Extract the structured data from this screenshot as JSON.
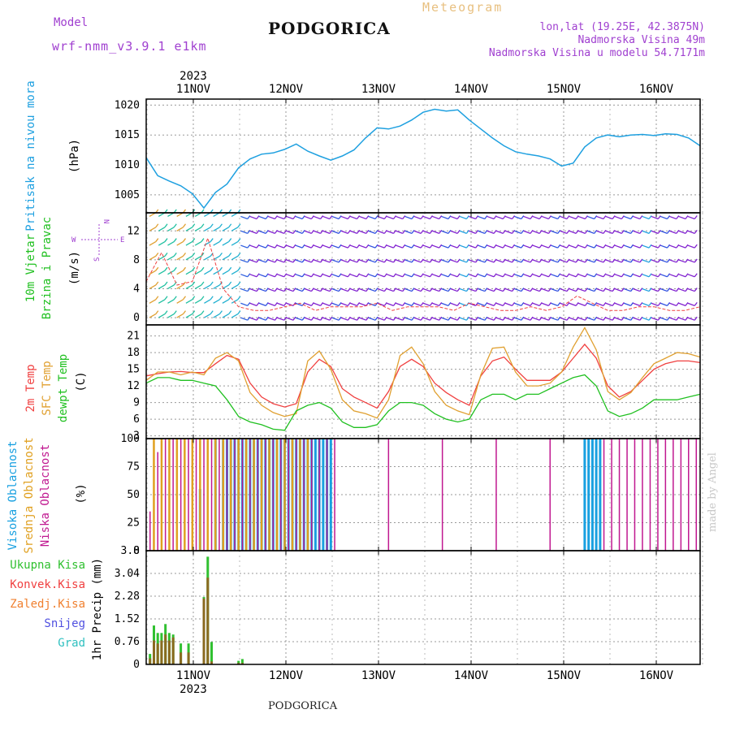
{
  "header": {
    "model_label": "Model",
    "model_name": "wrf-nmm_v3.9.1 e1km",
    "title": "PODGORICA",
    "meteogram_label": "Meteogram",
    "lonlat": "lon,lat (19.25E, 42.3875N)",
    "elevation": "Nadmorska Visina 49m",
    "model_elevation": "Nadmorska Visina u modelu 54.7171m",
    "footer_title": "PODGORICA",
    "watermark": "made by Angel"
  },
  "colors": {
    "pressure": "#1ea0e0",
    "temp2m": "#f04040",
    "sfc_temp": "#e0a030",
    "dewpoint": "#20c020",
    "high_cloud": "#18a0e0",
    "mid_cloud": "#e0a020",
    "low_cloud": "#c01890",
    "total_precip": "#30c030",
    "conv_precip": "#f04040",
    "frozen": "#f08030",
    "snow": "#5050e0",
    "hail": "#30c0c0",
    "header_purple": "#a040d0"
  },
  "chart_data": [
    {
      "type": "line",
      "id": "pressure",
      "ylabel": "Pritisak na nivou mora",
      "unit": "(hPa)",
      "top_year": "2023",
      "day_labels": [
        "11NOV",
        "12NOV",
        "13NOV",
        "14NOV",
        "15NOV",
        "16NOV"
      ],
      "ylim": [
        1002,
        1021
      ],
      "yticks": [
        1005,
        1010,
        1015,
        1020
      ],
      "grid": true,
      "x_hours": [
        0,
        3,
        6,
        9,
        12,
        15,
        18,
        21,
        24,
        27,
        30,
        33,
        36,
        39,
        42,
        45,
        48,
        51,
        54,
        57,
        60,
        63,
        66,
        69,
        72,
        75,
        78,
        81,
        84,
        87,
        90,
        93,
        96,
        99,
        102,
        105,
        108,
        111,
        114,
        117,
        120,
        123,
        126,
        129,
        132,
        135,
        138,
        141,
        144
      ],
      "values": [
        1011.2,
        1008.2,
        1007.3,
        1006.5,
        1005.2,
        1002.8,
        1005.4,
        1006.8,
        1009.5,
        1011,
        1011.8,
        1012,
        1012.6,
        1013.5,
        1012.3,
        1011.5,
        1010.8,
        1011.5,
        1012.5,
        1014.5,
        1016.2,
        1016,
        1016.5,
        1017.5,
        1018.8,
        1019.3,
        1019,
        1019.2,
        1017.5,
        1016,
        1014.5,
        1013.2,
        1012.2,
        1011.8,
        1011.5,
        1011,
        1009.8,
        1010.3,
        1013,
        1014.5,
        1015,
        1014.7,
        1015,
        1015.1,
        1014.9,
        1015.2,
        1015.1,
        1014.5,
        1013.2
      ]
    },
    {
      "type": "scatter",
      "id": "wind",
      "ylabel": "10m Vjetar",
      "ylabel2": "Brzina i Pravac",
      "unit": "(m/s)",
      "compass": {
        "north": "N",
        "west": "W",
        "east": "E",
        "south": "S"
      },
      "ylim": [
        -1,
        14.5
      ],
      "yticks": [
        0,
        4,
        8,
        12
      ],
      "grid": true,
      "x_hours": [
        0,
        4,
        8,
        12,
        16,
        20,
        24,
        28,
        32,
        36,
        40,
        44,
        48,
        52,
        56,
        60,
        64,
        68,
        72,
        76,
        80,
        84,
        88,
        92,
        96,
        100,
        104,
        108,
        112,
        116,
        120,
        124,
        128,
        132,
        136,
        140,
        144
      ],
      "speed_values": [
        5,
        9,
        4.5,
        5,
        11,
        4,
        1.5,
        1,
        1,
        1.5,
        2,
        1,
        1.5,
        1.5,
        1.5,
        2,
        1,
        1.5,
        1.5,
        1.5,
        1,
        2,
        1.5,
        1,
        1,
        1.5,
        1,
        1.5,
        3,
        2,
        1,
        1,
        1.5,
        1.5,
        1,
        1,
        1.5
      ]
    },
    {
      "type": "line",
      "id": "temperature",
      "unit": "(C)",
      "ylim": [
        2.5,
        23
      ],
      "yticks": [
        3,
        6,
        9,
        12,
        15,
        18,
        21
      ],
      "grid": true,
      "x_hours": [
        0,
        3,
        6,
        9,
        12,
        15,
        18,
        21,
        24,
        27,
        30,
        33,
        36,
        39,
        42,
        45,
        48,
        51,
        54,
        57,
        60,
        63,
        66,
        69,
        72,
        75,
        78,
        81,
        84,
        87,
        90,
        93,
        96,
        99,
        102,
        105,
        108,
        111,
        114,
        117,
        120,
        123,
        126,
        129,
        132,
        135,
        138,
        141,
        144
      ],
      "series": [
        {
          "name": "2m Temp",
          "values": [
            13.8,
            14.2,
            14.5,
            14.6,
            14.4,
            14.4,
            16,
            17.5,
            16.8,
            12.5,
            10,
            8.8,
            8.2,
            8.8,
            14.5,
            16.8,
            15.5,
            11.5,
            10,
            9,
            8,
            11,
            15.5,
            16.8,
            15.5,
            12.5,
            10.8,
            9.5,
            8.5,
            13.8,
            16.5,
            17.2,
            15,
            13,
            13,
            13,
            14.5,
            17,
            19.5,
            17,
            12,
            10,
            11,
            13,
            15,
            16,
            16.5,
            16.5,
            16.2
          ]
        },
        {
          "name": "SFC Temp",
          "values": [
            13,
            14.5,
            14.5,
            14,
            14.5,
            14,
            17,
            18,
            16.5,
            10.8,
            8.5,
            7.2,
            6.5,
            7,
            16.5,
            18.3,
            15,
            9.5,
            7.5,
            7,
            6.2,
            9.5,
            17.5,
            19,
            16,
            11,
            8.5,
            7.5,
            6.8,
            14,
            18.8,
            19,
            14.5,
            12,
            12,
            12.5,
            14.5,
            19,
            22.5,
            18.5,
            11,
            9.5,
            10.8,
            13.5,
            16,
            17,
            18,
            17.8,
            17.2
          ]
        },
        {
          "name": "dewpt Temp",
          "values": [
            12.5,
            13.5,
            13.5,
            13,
            13,
            12.5,
            12,
            9.5,
            6.5,
            5.5,
            5,
            4.2,
            4,
            7.5,
            8.5,
            9,
            8,
            5.5,
            4.5,
            4.5,
            5,
            7.5,
            9,
            9,
            8.5,
            7,
            6,
            5.5,
            6,
            9.5,
            10.5,
            10.5,
            9.5,
            10.5,
            10.5,
            11.5,
            12.5,
            13.5,
            14,
            12,
            7.5,
            6.5,
            7,
            8,
            9.5,
            9.5,
            9.5,
            10,
            10.5
          ]
        }
      ]
    },
    {
      "type": "bar",
      "id": "clouds",
      "unit": "(%)",
      "ylim": [
        0,
        100
      ],
      "yticks": [
        0,
        25,
        50,
        75,
        100
      ],
      "grid": true,
      "series": [
        {
          "name": "Visoka Oblacnost",
          "x_hours": [
            10,
            11,
            12,
            13,
            14,
            15,
            16,
            17,
            18,
            19,
            20,
            21,
            22,
            23,
            24,
            25,
            26,
            27,
            28,
            29,
            30,
            31,
            32,
            33,
            34,
            35,
            36,
            37,
            38,
            39,
            40,
            41,
            42,
            43,
            44,
            45,
            46,
            47,
            48,
            114,
            115,
            116,
            117,
            118
          ],
          "values": [
            0,
            0,
            0,
            0,
            55,
            0,
            0,
            0,
            100,
            0,
            100,
            100,
            100,
            100,
            100,
            100,
            100,
            100,
            100,
            100,
            100,
            100,
            100,
            100,
            100,
            100,
            100,
            100,
            100,
            100,
            100,
            100,
            100,
            100,
            100,
            100,
            100,
            100,
            100,
            100,
            100,
            100,
            100,
            100
          ]
        },
        {
          "name": "Srednja Oblacnost",
          "x_hours": [
            2,
            4,
            6,
            8,
            10,
            12,
            14,
            16,
            18,
            20,
            22,
            24,
            26,
            28,
            30,
            32,
            34,
            36,
            38,
            40,
            42,
            48,
            50,
            52,
            54,
            56,
            58,
            60,
            62,
            64,
            66,
            68,
            70,
            72,
            74,
            76,
            78,
            80,
            82,
            84,
            86,
            88,
            90,
            92,
            94,
            96,
            98,
            100,
            102,
            104,
            106,
            108,
            110,
            112,
            114,
            116,
            118,
            120,
            122,
            124,
            126,
            128,
            130,
            132,
            134,
            136,
            138,
            140,
            142,
            144
          ],
          "values": [
            100,
            100,
            100,
            100,
            100,
            100,
            100,
            100,
            100,
            100,
            100,
            100,
            100,
            100,
            100,
            100,
            100,
            100,
            100,
            100,
            100,
            0,
            0,
            0,
            0,
            0,
            0,
            0,
            0,
            0,
            0,
            0,
            0,
            0,
            0,
            0,
            0,
            0,
            0,
            0,
            0,
            0,
            0,
            0,
            0,
            0,
            0,
            0,
            0,
            0,
            0,
            0,
            0,
            0,
            0,
            0,
            0,
            0,
            0,
            0,
            0,
            0,
            0,
            0,
            0,
            0,
            0,
            0,
            0,
            0
          ]
        },
        {
          "name": "Niska Oblacnost",
          "x_hours": [
            1,
            3,
            5,
            7,
            9,
            11,
            13,
            15,
            17,
            19,
            21,
            23,
            25,
            27,
            29,
            31,
            33,
            35,
            37,
            39,
            41,
            43,
            45,
            47,
            49,
            51,
            53,
            55,
            57,
            59,
            61,
            63,
            65,
            67,
            69,
            71,
            73,
            75,
            77,
            79,
            81,
            83,
            85,
            87,
            89,
            91,
            93,
            95,
            97,
            99,
            101,
            103,
            105,
            107,
            109,
            111,
            113,
            115,
            117,
            119,
            121,
            123,
            125,
            127,
            129,
            131,
            133,
            135,
            137,
            139,
            141,
            143
          ],
          "values": [
            35,
            88,
            100,
            100,
            100,
            100,
            100,
            100,
            100,
            100,
            100,
            100,
            100,
            100,
            100,
            100,
            100,
            100,
            100,
            100,
            100,
            100,
            100,
            100,
            100,
            100,
            100,
            100,
            100,
            100,
            100,
            100,
            100,
            100,
            100,
            100,
            100,
            100,
            100,
            100,
            100,
            100,
            100,
            100,
            100,
            100,
            100,
            100,
            100,
            100,
            100,
            100,
            100,
            100,
            100,
            100,
            100,
            100,
            100,
            100,
            100,
            100,
            100,
            100,
            100,
            100,
            100,
            100,
            100,
            100,
            100,
            100
          ]
        }
      ]
    },
    {
      "type": "bar",
      "id": "precip",
      "ylabel": "1hr Precip (mm)",
      "ylim": [
        0,
        3.8
      ],
      "yticks": [
        0,
        0.76,
        1.52,
        2.28,
        3.04,
        3.8
      ],
      "grid": true,
      "bottom_year": "2023",
      "series_names": [
        "Ukupna Kisa",
        "Konvek.Kisa",
        "Zaledj.Kisa",
        "Snijeg",
        "Grad"
      ],
      "x_hours": [
        1,
        2,
        3,
        4,
        5,
        6,
        7,
        8,
        9,
        10,
        11,
        12,
        13,
        14,
        15,
        16,
        17,
        18,
        19,
        20,
        21,
        22,
        23,
        24,
        25,
        26,
        27,
        28,
        29,
        30,
        31,
        32,
        33,
        34,
        35,
        36,
        37,
        38,
        39,
        40,
        41,
        42,
        43,
        44,
        45,
        46,
        47,
        48
      ],
      "total": [
        0.35,
        1.3,
        1.05,
        1.05,
        1.35,
        1.05,
        1,
        0,
        0.7,
        0,
        0.7,
        0,
        0,
        0,
        2.25,
        3.6,
        0.75,
        0,
        0,
        0,
        0,
        0,
        0,
        0.12,
        0.18,
        0,
        0,
        0,
        0,
        0,
        0,
        0,
        0,
        0,
        0,
        0,
        0,
        0,
        0,
        0,
        0,
        0,
        0,
        0,
        0,
        0,
        0,
        0
      ],
      "convective": [
        0.2,
        0.8,
        0.7,
        0.8,
        1,
        0.8,
        0.9,
        0,
        0.4,
        0,
        0.4,
        0,
        0,
        0,
        2.2,
        2.9,
        0.1,
        0,
        0,
        0,
        0,
        0,
        0,
        0.05,
        0.05,
        0,
        0,
        0,
        0,
        0,
        0,
        0,
        0,
        0,
        0,
        0,
        0,
        0,
        0,
        0,
        0,
        0,
        0,
        0,
        0,
        0,
        0,
        0
      ]
    }
  ]
}
